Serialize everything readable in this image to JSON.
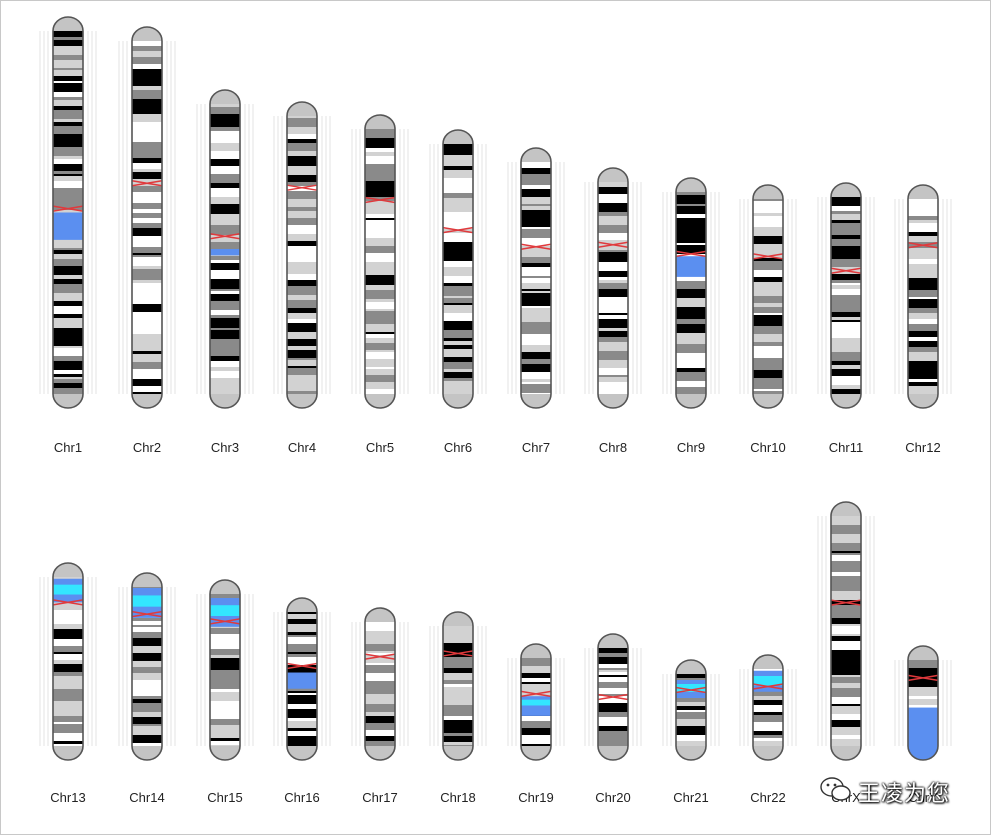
{
  "figure": {
    "chromosomes": [
      {
        "label": "Chr1",
        "highlights": [
          {
            "from": 0.5,
            "to": 0.57,
            "color": "#5b8ff0"
          }
        ]
      },
      {
        "label": "Chr2",
        "highlights": []
      },
      {
        "label": "Chr3",
        "highlights": [
          {
            "from": 0.5,
            "to": 0.52,
            "color": "#5b8ff0"
          }
        ]
      },
      {
        "label": "Chr4",
        "highlights": []
      },
      {
        "label": "Chr5",
        "highlights": []
      },
      {
        "label": "Chr6",
        "highlights": []
      },
      {
        "label": "Chr7",
        "highlights": []
      },
      {
        "label": "Chr8",
        "highlights": []
      },
      {
        "label": "Chr9",
        "highlights": [
          {
            "from": 0.34,
            "to": 0.43,
            "color": "#5b8ff0"
          }
        ]
      },
      {
        "label": "Chr10",
        "highlights": []
      },
      {
        "label": "Chr11",
        "highlights": []
      },
      {
        "label": "Chr12",
        "highlights": []
      },
      {
        "label": "Chr13",
        "highlights": [
          {
            "from": 0.08,
            "to": 0.2,
            "color": "#5b8ff0"
          },
          {
            "from": 0.11,
            "to": 0.16,
            "color": "#33e6ff"
          }
        ]
      },
      {
        "label": "Chr14",
        "highlights": [
          {
            "from": 0.08,
            "to": 0.24,
            "color": "#5b8ff0"
          },
          {
            "from": 0.12,
            "to": 0.18,
            "color": "#33e6ff"
          }
        ]
      },
      {
        "label": "Chr15",
        "highlights": [
          {
            "from": 0.1,
            "to": 0.26,
            "color": "#5b8ff0"
          },
          {
            "from": 0.14,
            "to": 0.2,
            "color": "#33e6ff"
          }
        ]
      },
      {
        "label": "Chr16",
        "highlights": [
          {
            "from": 0.46,
            "to": 0.56,
            "color": "#5b8ff0"
          }
        ]
      },
      {
        "label": "Chr17",
        "highlights": []
      },
      {
        "label": "Chr18",
        "highlights": []
      },
      {
        "label": "Chr19",
        "highlights": [
          {
            "from": 0.45,
            "to": 0.62,
            "color": "#5b8ff0"
          },
          {
            "from": 0.48,
            "to": 0.53,
            "color": "#33e6ff"
          }
        ]
      },
      {
        "label": "Chr20",
        "highlights": []
      },
      {
        "label": "Chr21",
        "highlights": [
          {
            "from": 0.2,
            "to": 0.38,
            "color": "#5b8ff0"
          },
          {
            "from": 0.24,
            "to": 0.32,
            "color": "#33e6ff"
          }
        ]
      },
      {
        "label": "Chr22",
        "highlights": [
          {
            "from": 0.15,
            "to": 0.35,
            "color": "#5b8ff0"
          },
          {
            "from": 0.2,
            "to": 0.29,
            "color": "#33e6ff"
          }
        ]
      },
      {
        "label": "ChrX",
        "highlights": []
      },
      {
        "label": "ChrY",
        "highlights": [
          {
            "from": 0.54,
            "to": 1,
            "color": "#5b8ff0"
          }
        ]
      }
    ],
    "colors": {
      "highlight": "#5b8ff0",
      "highlight_cyan": "#33e6ff",
      "centromere": "#e0393c",
      "outline": "#555555",
      "band_dark": "#000000",
      "band_gray": "#8a8a8a",
      "band_light": "#d2d2d2",
      "band_white": "#ffffff",
      "cap": "#c4c4c4"
    }
  },
  "watermark": {
    "text": "王凌为您",
    "icon": "wechat-logo-icon"
  }
}
